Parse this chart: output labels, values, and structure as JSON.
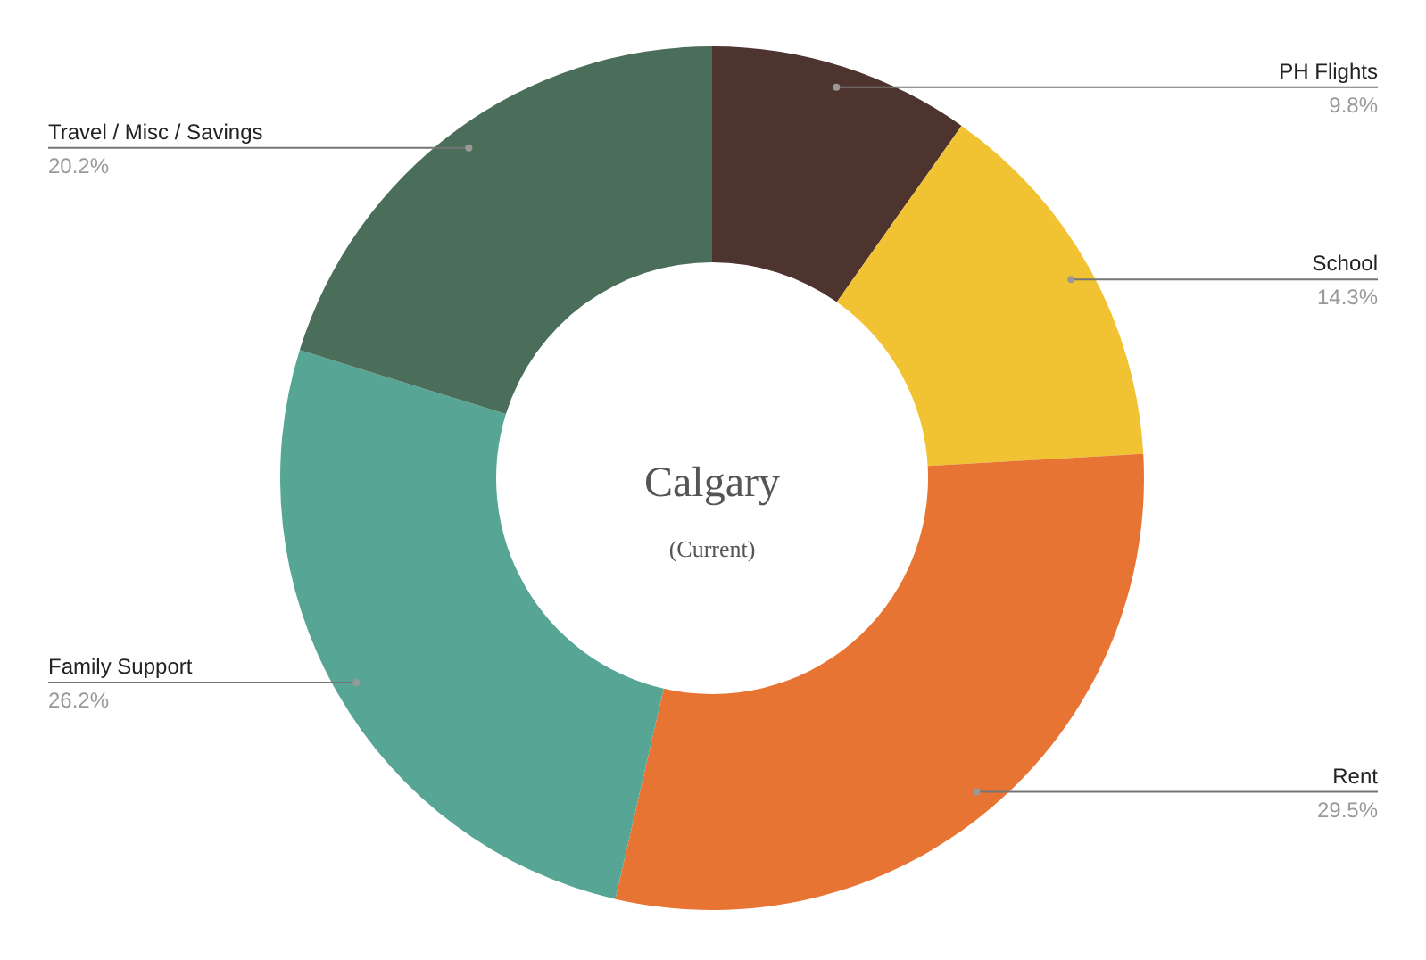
{
  "chart_data": {
    "type": "donut",
    "title": "Calgary",
    "subtitle": "(Current)",
    "categories": [
      "PH Flights",
      "School",
      "Rent",
      "Family Support",
      "Travel / Misc / Savings"
    ],
    "values": [
      9.8,
      14.3,
      29.5,
      26.2,
      20.2
    ],
    "colors": [
      "#4e342f",
      "#f1c232",
      "#e87434",
      "#56a595",
      "#4a6e59"
    ],
    "value_labels": [
      "9.8%",
      "14.3%",
      "29.5%",
      "26.2%",
      "20.2%"
    ]
  }
}
